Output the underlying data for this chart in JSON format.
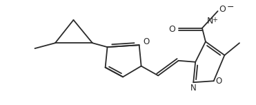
{
  "bg_color": "#ffffff",
  "line_color": "#2a2a2a",
  "line_width": 1.3,
  "figsize": [
    3.71,
    1.52
  ],
  "dpi": 100,
  "xlim": [
    0,
    371
  ],
  "ylim": [
    0,
    152
  ]
}
